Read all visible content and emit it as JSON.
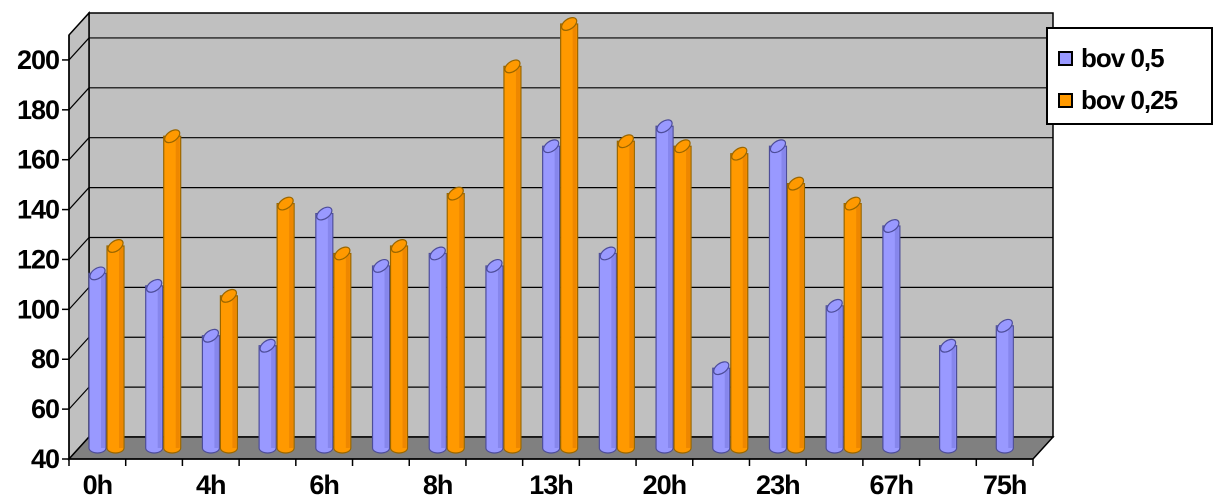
{
  "chart_data": {
    "type": "bar",
    "style": "3d-cylinder",
    "title": "",
    "xlabel": "",
    "ylabel": "",
    "ylim": [
      40,
      210
    ],
    "y_ticks": [
      40,
      60,
      80,
      100,
      120,
      140,
      160,
      180,
      200
    ],
    "grid": true,
    "legend_position": "right",
    "categories": [
      "0h",
      "",
      "4h",
      "",
      "6h",
      "",
      "8h",
      "",
      "13h",
      "",
      "20h",
      "",
      "23h",
      "",
      "67h",
      "",
      "75h"
    ],
    "series": [
      {
        "name": "bov 0,5",
        "color": "#9999ff",
        "values": [
          110,
          105,
          85,
          81,
          134,
          113,
          118,
          113,
          161,
          118,
          169,
          72,
          161,
          97,
          129,
          81,
          89
        ]
      },
      {
        "name": "bov 0,25",
        "color": "#ff9900",
        "values": [
          121,
          165,
          101,
          138,
          118,
          121,
          142,
          193,
          210,
          163,
          161,
          158,
          146,
          138,
          null,
          null,
          null
        ]
      }
    ]
  }
}
